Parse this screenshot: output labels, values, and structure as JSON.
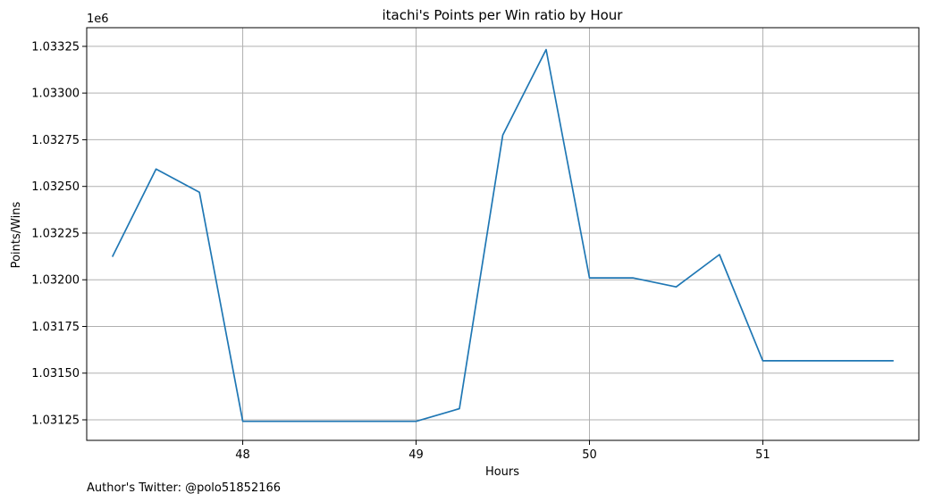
{
  "chart_data": {
    "type": "line",
    "title": "itachi's Points per Win ratio by Hour",
    "xlabel": "Hours",
    "ylabel": "Points/Wins",
    "y_offset_label": "1e6",
    "footer": "Author's Twitter: @polo51852166",
    "xlim": [
      47.1,
      51.9
    ],
    "ylim": [
      1031140,
      1033350
    ],
    "x_ticks": [
      48,
      49,
      50,
      51
    ],
    "x_tick_labels": [
      "48",
      "49",
      "50",
      "51"
    ],
    "y_ticks": [
      1031250,
      1031500,
      1031750,
      1032000,
      1032250,
      1032500,
      1032750,
      1033000,
      1033250
    ],
    "y_tick_labels": [
      "1.03125",
      "1.03150",
      "1.03175",
      "1.03200",
      "1.03225",
      "1.03250",
      "1.03275",
      "1.03300",
      "1.03325"
    ],
    "grid": true,
    "series": [
      {
        "color": "#1f77b4",
        "x": [
          47.25,
          47.5,
          47.75,
          48.0,
          48.25,
          48.5,
          48.75,
          49.0,
          49.25,
          49.5,
          49.75,
          50.0,
          50.25,
          50.5,
          50.75,
          51.0,
          51.25,
          51.5,
          51.75
        ],
        "y": [
          1032127,
          1032593,
          1032469,
          1031242,
          1031242,
          1031242,
          1031242,
          1031242,
          1031310,
          1032775,
          1033233,
          1032010,
          1032010,
          1031962,
          1032135,
          1031566,
          1031566,
          1031566,
          1031566
        ]
      }
    ]
  }
}
